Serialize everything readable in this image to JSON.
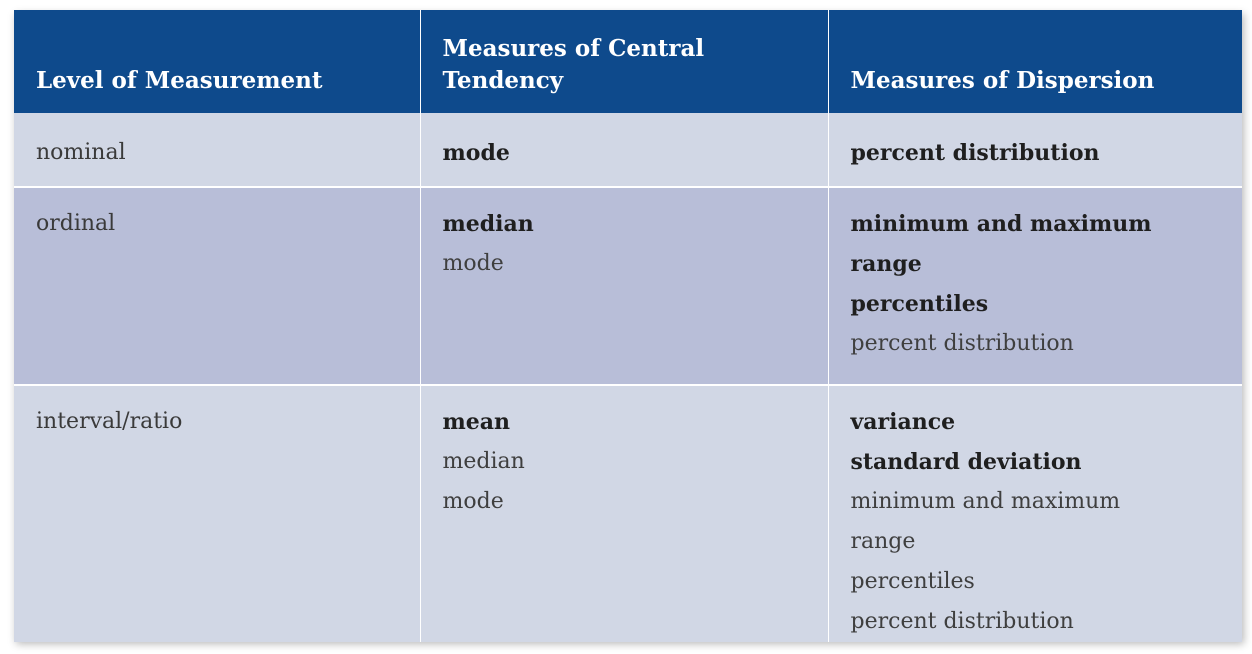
{
  "table": {
    "headers": [
      "Level of Measurement",
      "Measures of Central Tendency",
      "Measures of Dispersion"
    ],
    "rows": [
      {
        "level": "nominal",
        "central": [
          {
            "text": "mode",
            "emphasis": true
          }
        ],
        "dispersion": [
          {
            "text": "percent distribution",
            "emphasis": true
          }
        ]
      },
      {
        "level": "ordinal",
        "central": [
          {
            "text": "median",
            "emphasis": true
          },
          {
            "text": "mode",
            "emphasis": false
          }
        ],
        "dispersion": [
          {
            "text": "minimum and maximum",
            "emphasis": true
          },
          {
            "text": "range",
            "emphasis": true
          },
          {
            "text": "percentiles",
            "emphasis": true
          },
          {
            "text": "percent distribution",
            "emphasis": false
          }
        ]
      },
      {
        "level": "interval/ratio",
        "central": [
          {
            "text": "mean",
            "emphasis": true
          },
          {
            "text": "median",
            "emphasis": false
          },
          {
            "text": "mode",
            "emphasis": false
          }
        ],
        "dispersion": [
          {
            "text": "variance",
            "emphasis": true
          },
          {
            "text": "standard deviation",
            "emphasis": true
          },
          {
            "text": "minimum and maximum",
            "emphasis": false
          },
          {
            "text": "range",
            "emphasis": false
          },
          {
            "text": "percentiles",
            "emphasis": false
          },
          {
            "text": "percent distribution",
            "emphasis": false
          }
        ]
      }
    ]
  },
  "colors": {
    "header_bg": "#0e4a8c",
    "row_light": "#d1d7e5",
    "row_dark": "#b8bed8"
  }
}
